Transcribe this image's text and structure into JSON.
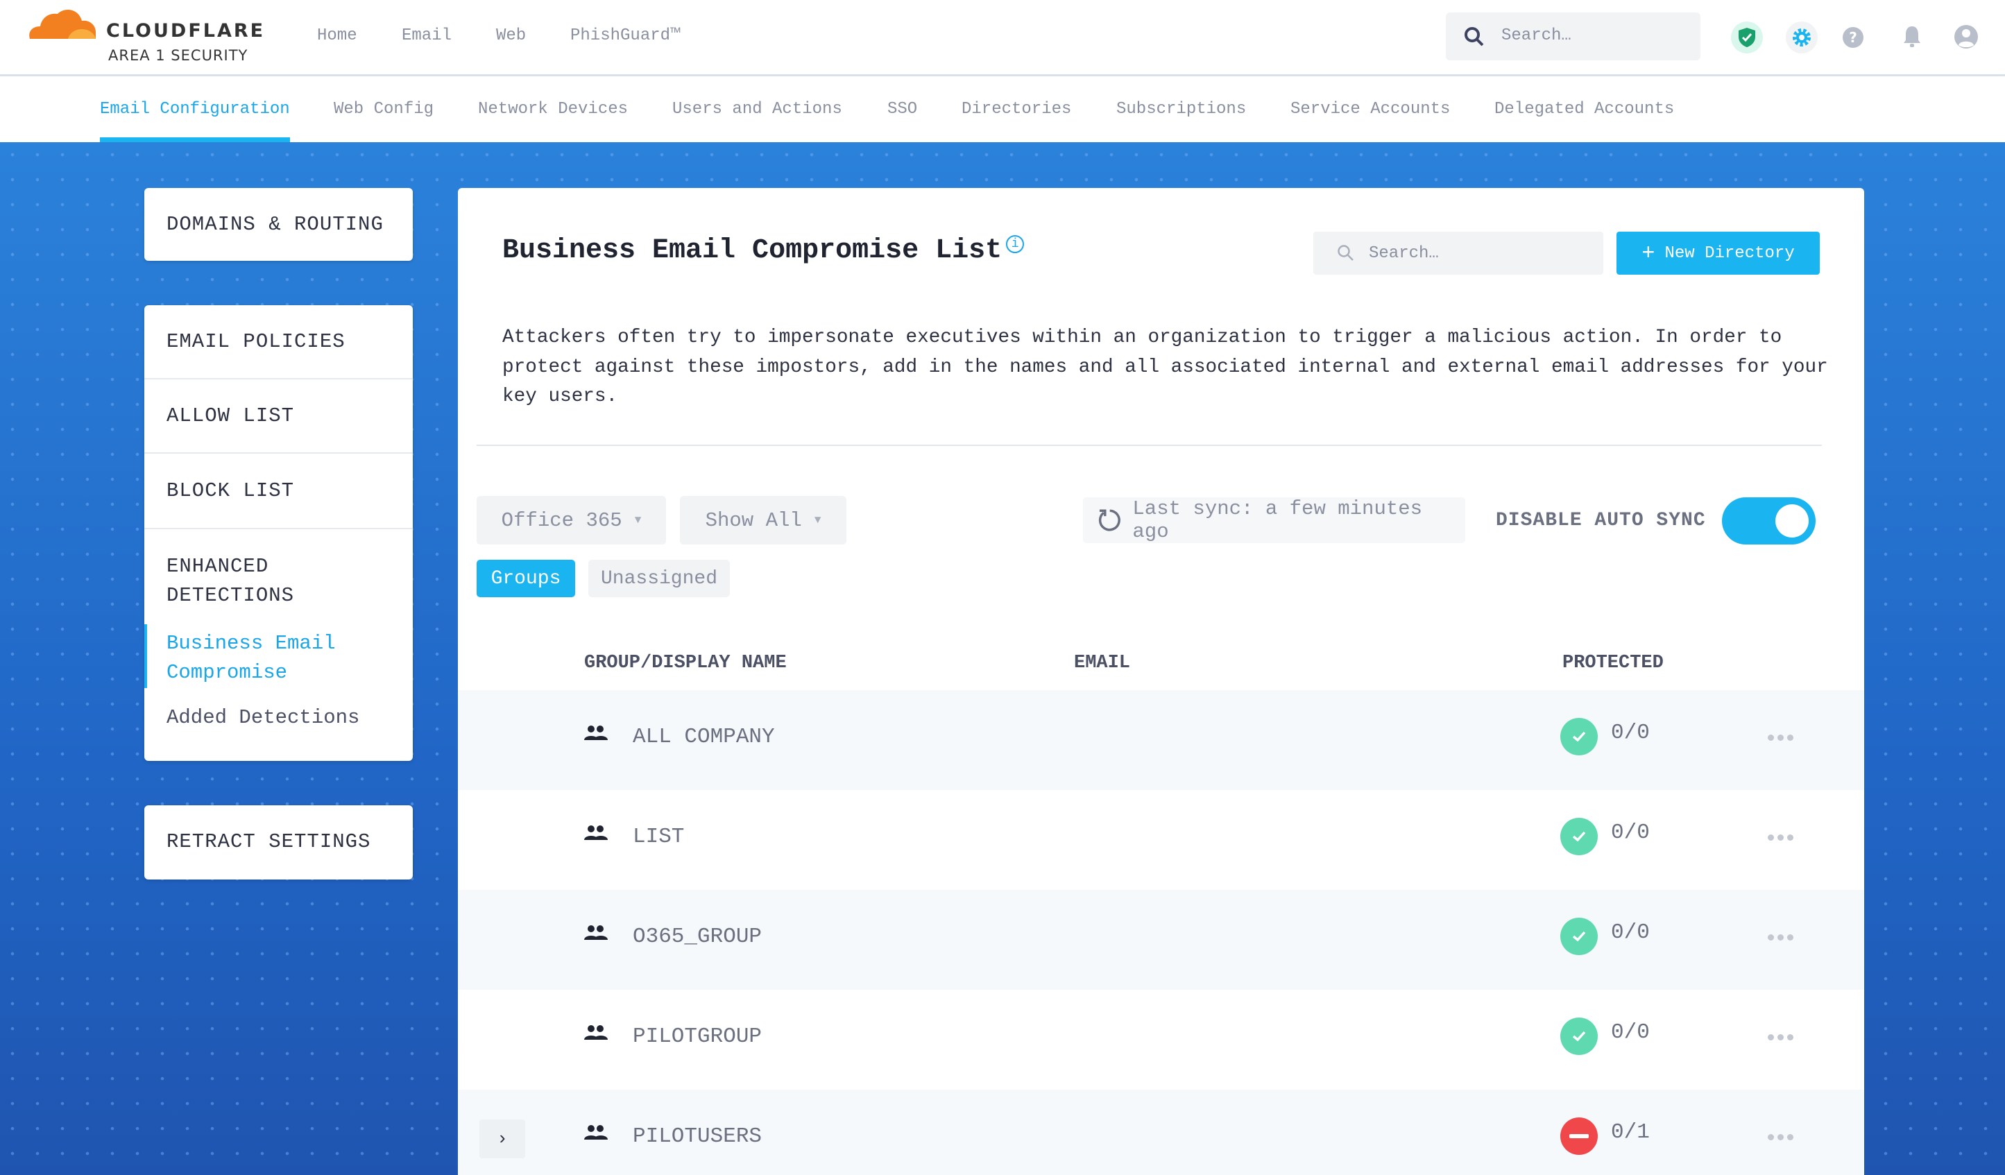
{
  "brand": {
    "name": "CLOUDFLARE",
    "sub": "AREA 1 SECURITY",
    "colors": {
      "orange": "#f38020",
      "accent": "#1ab4f0"
    }
  },
  "topnav": {
    "items": [
      "Home",
      "Email",
      "Web",
      "PhishGuard™"
    ],
    "search_placeholder": "Search…",
    "icons": [
      "shield-check-icon",
      "gear-icon",
      "help-icon",
      "bell-icon",
      "user-icon"
    ]
  },
  "subnav": {
    "tabs": [
      "Email Configuration",
      "Web Config",
      "Network Devices",
      "Users and Actions",
      "SSO",
      "Directories",
      "Subscriptions",
      "Service Accounts",
      "Delegated Accounts"
    ],
    "active": "Email Configuration"
  },
  "sidebar": {
    "domains": "DOMAINS & ROUTING",
    "email_policies": "EMAIL POLICIES",
    "allow_list": "ALLOW LIST",
    "block_list": "BLOCK LIST",
    "enhanced": "ENHANCED DETECTIONS",
    "bec": "Business Email Compromise",
    "added": "Added Detections",
    "retract": "RETRACT SETTINGS"
  },
  "main": {
    "title": "Business Email Compromise List",
    "info_icon": "i",
    "search_placeholder": "Search…",
    "new_directory": "New Directory",
    "description": "Attackers often try to impersonate executives within an organization to trigger a malicious action. In order to protect against these impostors, add in the names and all associated internal and external email addresses for your key users.",
    "source_select": "Office 365",
    "filter_select": "Show All",
    "last_sync": "Last sync: a few minutes ago",
    "disable_auto_sync": "DISABLE AUTO SYNC",
    "auto_sync_on": true,
    "view_tabs": [
      "Groups",
      "Unassigned"
    ],
    "active_view": "Groups",
    "columns": [
      "GROUP/DISPLAY NAME",
      "EMAIL",
      "PROTECTED"
    ],
    "rows": [
      {
        "name": "ALL COMPANY",
        "email": "",
        "protected": "0/0",
        "status": "ok"
      },
      {
        "name": "LIST",
        "email": "",
        "protected": "0/0",
        "status": "ok"
      },
      {
        "name": "O365_GROUP",
        "email": "",
        "protected": "0/0",
        "status": "ok"
      },
      {
        "name": "PILOTGROUP",
        "email": "",
        "protected": "0/0",
        "status": "ok"
      },
      {
        "name": "PILOTUSERS",
        "email": "",
        "protected": "0/1",
        "status": "blocked",
        "expandable": true
      }
    ]
  }
}
